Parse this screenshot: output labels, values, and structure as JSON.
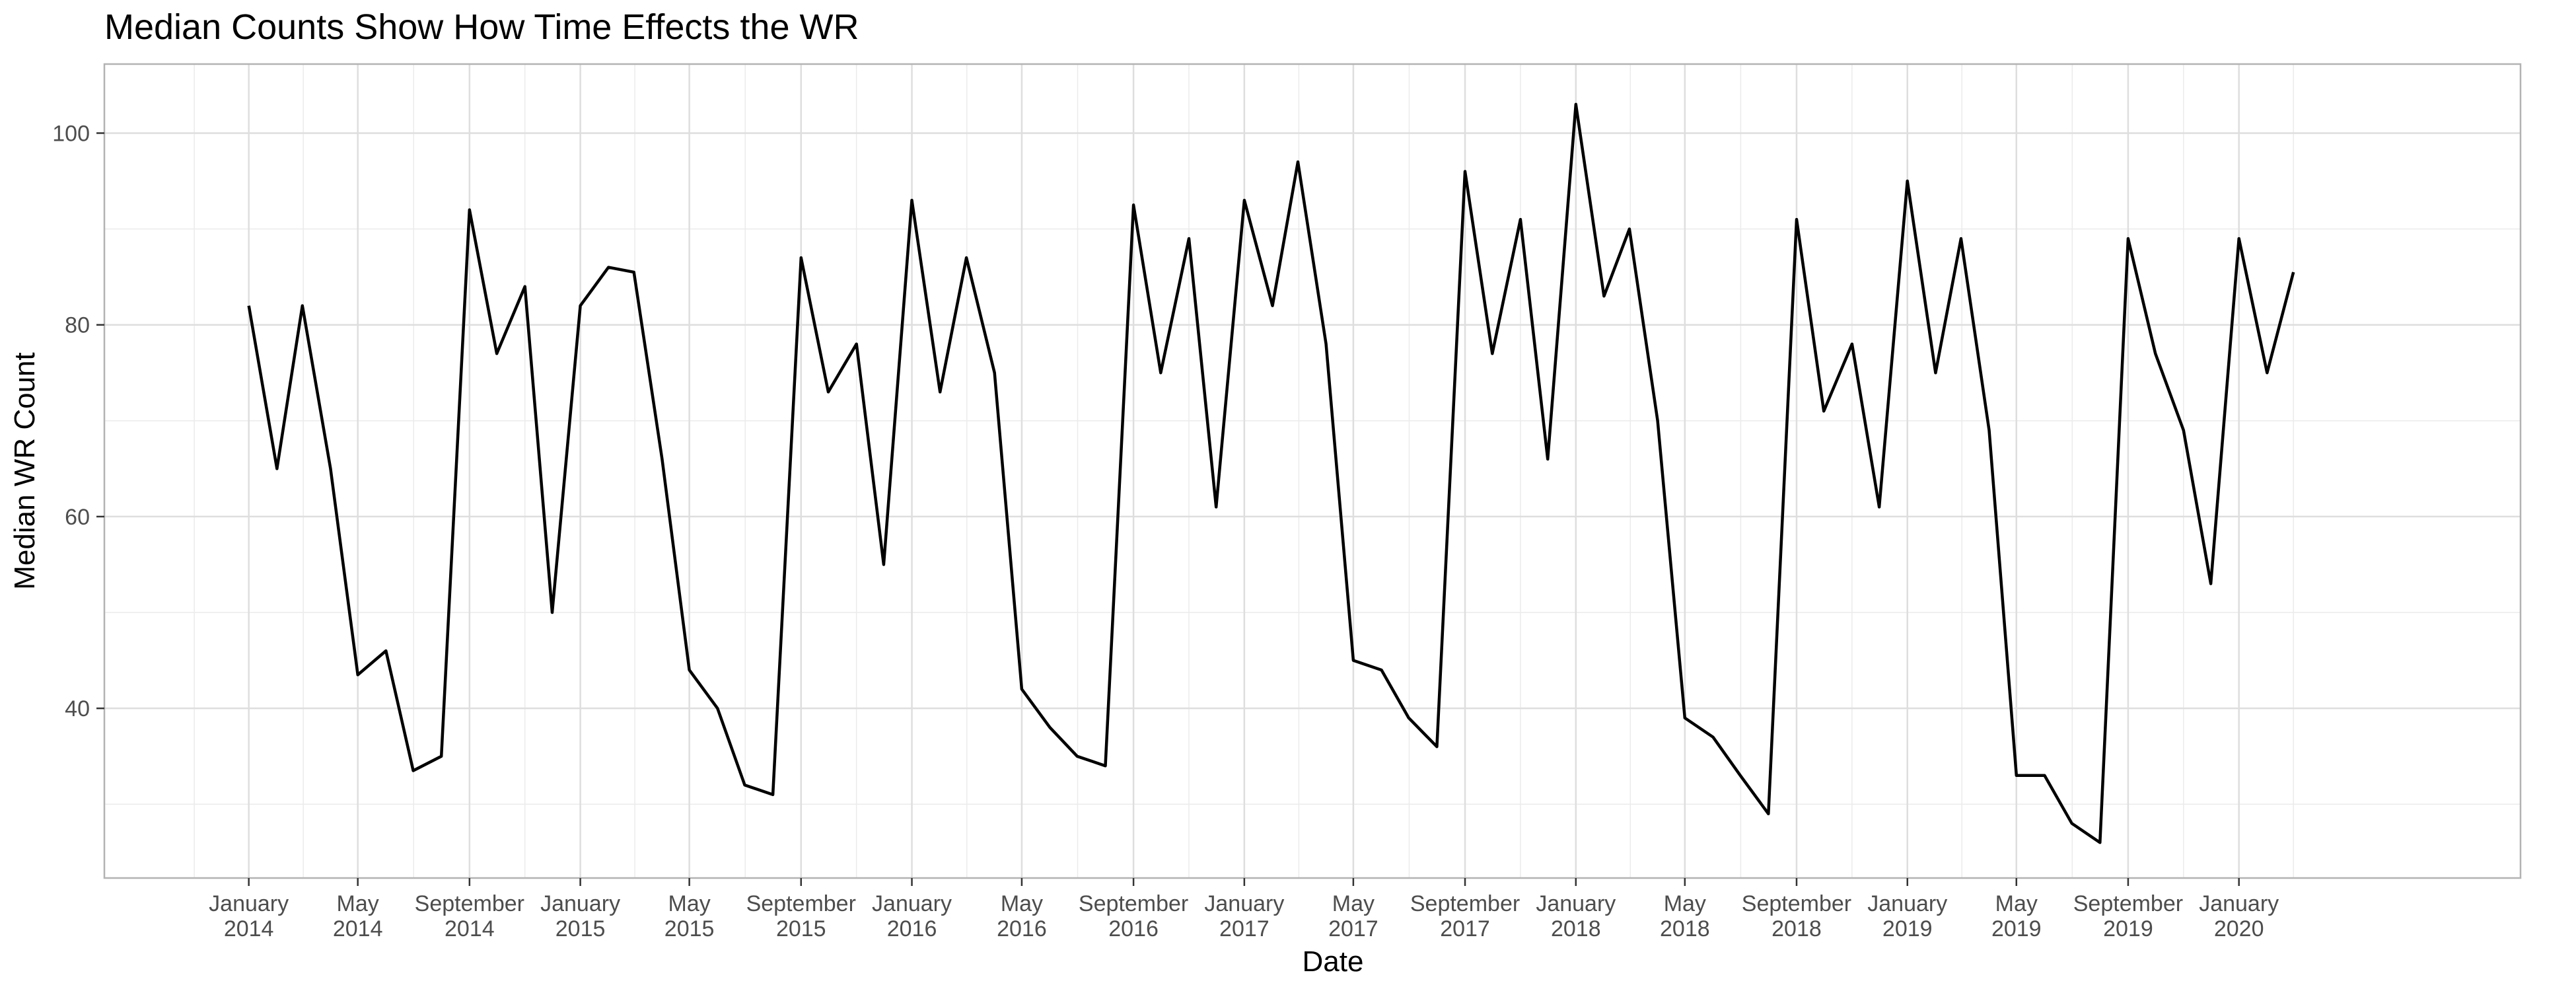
{
  "chart_data": {
    "type": "line",
    "title": "Median Counts Show How Time Effects the WR",
    "xlabel": "Date",
    "ylabel": "Median WR Count",
    "ylim": [
      22.3,
      107.2
    ],
    "xlim": [
      "2013-07-26",
      "2020-11-06"
    ],
    "grid": true,
    "y_ticks": [
      40,
      60,
      80,
      100
    ],
    "x_ticks": [
      {
        "date": "2014-01-01",
        "label": [
          "January",
          "2014"
        ]
      },
      {
        "date": "2014-05-01",
        "label": [
          "May",
          "2014"
        ]
      },
      {
        "date": "2014-09-01",
        "label": [
          "September",
          "2014"
        ]
      },
      {
        "date": "2015-01-01",
        "label": [
          "January",
          "2015"
        ]
      },
      {
        "date": "2015-05-01",
        "label": [
          "May",
          "2015"
        ]
      },
      {
        "date": "2015-09-01",
        "label": [
          "September",
          "2015"
        ]
      },
      {
        "date": "2016-01-01",
        "label": [
          "January",
          "2016"
        ]
      },
      {
        "date": "2016-05-01",
        "label": [
          "May",
          "2016"
        ]
      },
      {
        "date": "2016-09-01",
        "label": [
          "September",
          "2016"
        ]
      },
      {
        "date": "2017-01-01",
        "label": [
          "January",
          "2017"
        ]
      },
      {
        "date": "2017-05-01",
        "label": [
          "May",
          "2017"
        ]
      },
      {
        "date": "2017-09-01",
        "label": [
          "September",
          "2017"
        ]
      },
      {
        "date": "2018-01-01",
        "label": [
          "January",
          "2018"
        ]
      },
      {
        "date": "2018-05-01",
        "label": [
          "May",
          "2018"
        ]
      },
      {
        "date": "2018-09-01",
        "label": [
          "September",
          "2018"
        ]
      },
      {
        "date": "2019-01-01",
        "label": [
          "January",
          "2019"
        ]
      },
      {
        "date": "2019-05-01",
        "label": [
          "May",
          "2019"
        ]
      },
      {
        "date": "2019-09-01",
        "label": [
          "September",
          "2019"
        ]
      },
      {
        "date": "2020-01-01",
        "label": [
          "January",
          "2020"
        ]
      }
    ],
    "series": [
      {
        "color": "#000000",
        "x": [
          "2014-01",
          "2014-02",
          "2014-03",
          "2014-04",
          "2014-05",
          "2014-06",
          "2014-07",
          "2014-08",
          "2014-09",
          "2014-10",
          "2014-11",
          "2014-12",
          "2015-01",
          "2015-02",
          "2015-03",
          "2015-04",
          "2015-05",
          "2015-06",
          "2015-07",
          "2015-08",
          "2015-09",
          "2015-10",
          "2015-11",
          "2015-12",
          "2016-01",
          "2016-02",
          "2016-03",
          "2016-04",
          "2016-05",
          "2016-06",
          "2016-07",
          "2016-08",
          "2016-09",
          "2016-10",
          "2016-11",
          "2016-12",
          "2017-01",
          "2017-02",
          "2017-03",
          "2017-04",
          "2017-05",
          "2017-06",
          "2017-07",
          "2017-08",
          "2017-09",
          "2017-10",
          "2017-11",
          "2017-12",
          "2018-01",
          "2018-02",
          "2018-03",
          "2018-04",
          "2018-05",
          "2018-06",
          "2018-07",
          "2018-08",
          "2018-09",
          "2018-10",
          "2018-11",
          "2018-12",
          "2019-01",
          "2019-02",
          "2019-03",
          "2019-04",
          "2019-05",
          "2019-06",
          "2019-07",
          "2019-08",
          "2019-09",
          "2019-10",
          "2019-11",
          "2019-12",
          "2020-01",
          "2020-02",
          "2020-03"
        ],
        "y": [
          82,
          65,
          82,
          65,
          43.5,
          46,
          33.5,
          35,
          92,
          77,
          84,
          50,
          82,
          86,
          85.5,
          66,
          44,
          40,
          32,
          31,
          87,
          73,
          78,
          55,
          93,
          73,
          87,
          75,
          42,
          38,
          35,
          34,
          92.5,
          75,
          89,
          61,
          93,
          82,
          97,
          78,
          45,
          44,
          39,
          36,
          96,
          77,
          91,
          66,
          103,
          83,
          90,
          70,
          39,
          37,
          33,
          29,
          91,
          71,
          78,
          61,
          95,
          75,
          89,
          69,
          33,
          33,
          28,
          26,
          89,
          77,
          69,
          53,
          89,
          75,
          85.5
        ]
      }
    ]
  }
}
